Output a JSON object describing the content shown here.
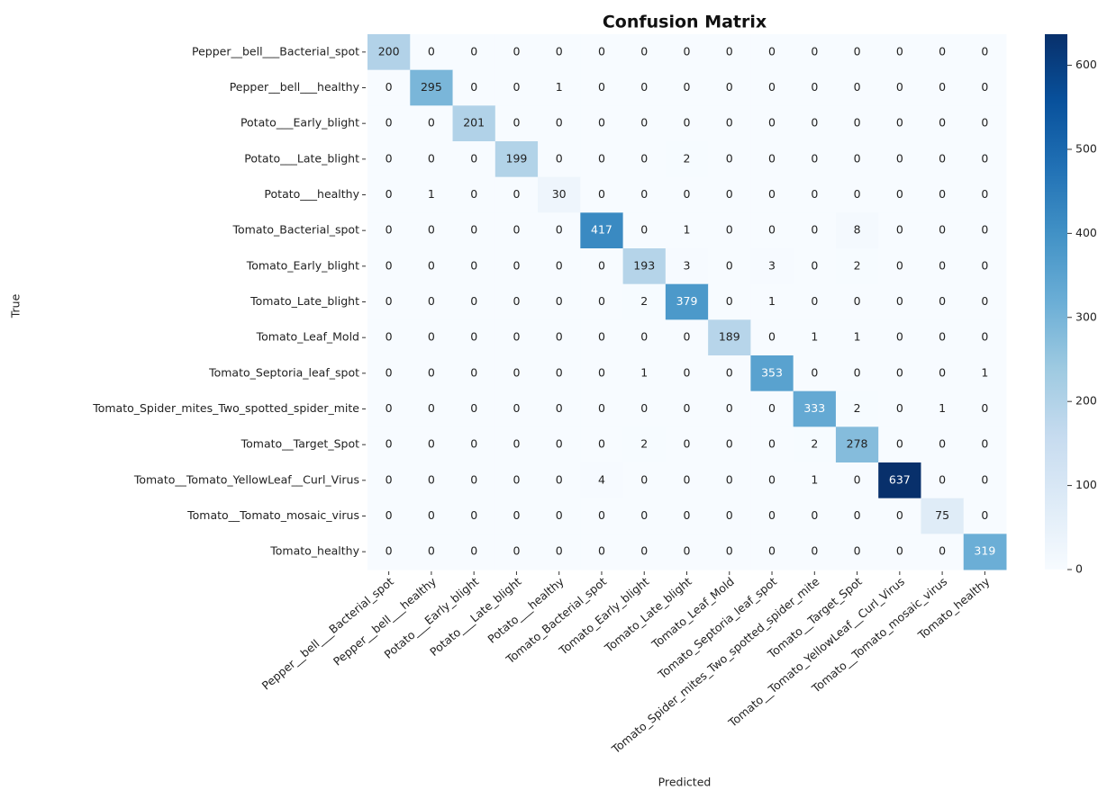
{
  "chart_data": {
    "type": "heatmap",
    "title": "Confusion Matrix",
    "x_label": "Predicted",
    "y_label": "True",
    "categories": [
      "Pepper__bell___Bacterial_spot",
      "Pepper__bell___healthy",
      "Potato___Early_blight",
      "Potato___Late_blight",
      "Potato___healthy",
      "Tomato_Bacterial_spot",
      "Tomato_Early_blight",
      "Tomato_Late_blight",
      "Tomato_Leaf_Mold",
      "Tomato_Septoria_leaf_spot",
      "Tomato_Spider_mites_Two_spotted_spider_mite",
      "Tomato__Target_Spot",
      "Tomato__Tomato_YellowLeaf__Curl_Virus",
      "Tomato__Tomato_mosaic_virus",
      "Tomato_healthy"
    ],
    "values": [
      [
        200,
        0,
        0,
        0,
        0,
        0,
        0,
        0,
        0,
        0,
        0,
        0,
        0,
        0,
        0
      ],
      [
        0,
        295,
        0,
        0,
        1,
        0,
        0,
        0,
        0,
        0,
        0,
        0,
        0,
        0,
        0
      ],
      [
        0,
        0,
        201,
        0,
        0,
        0,
        0,
        0,
        0,
        0,
        0,
        0,
        0,
        0,
        0
      ],
      [
        0,
        0,
        0,
        199,
        0,
        0,
        0,
        2,
        0,
        0,
        0,
        0,
        0,
        0,
        0
      ],
      [
        0,
        1,
        0,
        0,
        30,
        0,
        0,
        0,
        0,
        0,
        0,
        0,
        0,
        0,
        0
      ],
      [
        0,
        0,
        0,
        0,
        0,
        417,
        0,
        1,
        0,
        0,
        0,
        8,
        0,
        0,
        0
      ],
      [
        0,
        0,
        0,
        0,
        0,
        0,
        193,
        3,
        0,
        3,
        0,
        2,
        0,
        0,
        0
      ],
      [
        0,
        0,
        0,
        0,
        0,
        0,
        2,
        379,
        0,
        1,
        0,
        0,
        0,
        0,
        0
      ],
      [
        0,
        0,
        0,
        0,
        0,
        0,
        0,
        0,
        189,
        0,
        1,
        1,
        0,
        0,
        0
      ],
      [
        0,
        0,
        0,
        0,
        0,
        0,
        1,
        0,
        0,
        353,
        0,
        0,
        0,
        0,
        1
      ],
      [
        0,
        0,
        0,
        0,
        0,
        0,
        0,
        0,
        0,
        0,
        333,
        2,
        0,
        1,
        0
      ],
      [
        0,
        0,
        0,
        0,
        0,
        0,
        2,
        0,
        0,
        0,
        2,
        278,
        0,
        0,
        0
      ],
      [
        0,
        0,
        0,
        0,
        0,
        4,
        0,
        0,
        0,
        0,
        1,
        0,
        637,
        0,
        0
      ],
      [
        0,
        0,
        0,
        0,
        0,
        0,
        0,
        0,
        0,
        0,
        0,
        0,
        0,
        75,
        0
      ],
      [
        0,
        0,
        0,
        0,
        0,
        0,
        0,
        0,
        0,
        0,
        0,
        0,
        0,
        0,
        319
      ]
    ],
    "clim": [
      0,
      637
    ],
    "cticks": [
      0,
      100,
      200,
      300,
      400,
      500,
      600
    ],
    "colormap": [
      "#f7fbff",
      "#deebf7",
      "#c6dbef",
      "#9ecae1",
      "#6baed6",
      "#4292c6",
      "#2171b5",
      "#08519c",
      "#08306b"
    ]
  }
}
